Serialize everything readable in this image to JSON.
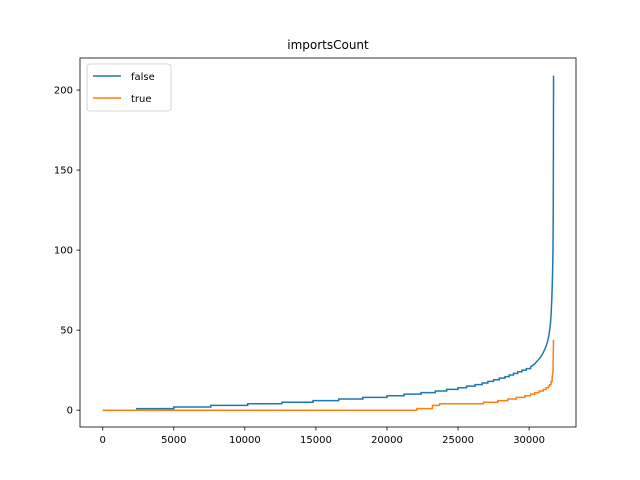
{
  "chart_data": {
    "type": "line",
    "title": "importsCount",
    "xlabel": "",
    "ylabel": "",
    "xlim": [
      -1600,
      33300
    ],
    "ylim": [
      -10.5,
      220
    ],
    "xticks": [
      0,
      5000,
      10000,
      15000,
      20000,
      25000,
      30000
    ],
    "yticks": [
      0,
      50,
      100,
      150,
      200
    ],
    "grid": false,
    "legend": "top-left",
    "series": [
      {
        "name": "false",
        "color": "#1f77b4",
        "x": [
          0,
          2400,
          2400,
          5000,
          5000,
          7600,
          7600,
          10200,
          10200,
          12600,
          12600,
          14800,
          14800,
          16600,
          16600,
          18300,
          18300,
          20000,
          20000,
          21200,
          21200,
          22400,
          22400,
          23400,
          23400,
          24200,
          24200,
          25000,
          25000,
          25600,
          25600,
          26200,
          26200,
          26700,
          26700,
          27100,
          27100,
          27500,
          27500,
          27900,
          27900,
          28300,
          28300,
          28600,
          28600,
          28900,
          28900,
          29200,
          29200,
          29500,
          29500,
          29800,
          29800,
          30100,
          30100,
          30400,
          30600,
          30800,
          31000,
          31200,
          31300,
          31400,
          31500,
          31550,
          31600,
          31650,
          31680,
          31700,
          31710,
          31720
        ],
        "y": [
          0,
          0,
          1,
          1,
          2,
          2,
          3,
          3,
          4,
          4,
          5,
          5,
          6,
          6,
          7,
          7,
          8,
          8,
          9,
          9,
          10,
          10,
          11,
          11,
          12,
          12,
          13,
          13,
          14,
          14,
          15,
          15,
          16,
          16,
          17,
          17,
          18,
          18,
          19,
          19,
          20,
          20,
          21,
          21,
          22,
          22,
          23,
          23,
          24,
          24,
          25,
          25,
          26,
          26,
          27,
          29,
          31,
          33,
          36,
          40,
          43,
          47,
          54,
          60,
          70,
          85,
          100,
          125,
          160,
          209
        ]
      },
      {
        "name": "true",
        "color": "#ff7f0e",
        "x": [
          0,
          22100,
          22100,
          23200,
          23200,
          23700,
          23700,
          26800,
          26800,
          27800,
          27800,
          28500,
          28500,
          29100,
          29100,
          29700,
          29700,
          30100,
          30100,
          30400,
          30400,
          30700,
          30700,
          31000,
          31000,
          31200,
          31200,
          31350,
          31350,
          31450,
          31450,
          31550,
          31550,
          31620,
          31620,
          31680,
          31700,
          31720
        ],
        "y": [
          0,
          0,
          1,
          1,
          3,
          3,
          4,
          4,
          5,
          5,
          6,
          6,
          7,
          7,
          8,
          8,
          9,
          9,
          10,
          10,
          11,
          11,
          12,
          12,
          13,
          13,
          14,
          14,
          15,
          15,
          16,
          16,
          18,
          18,
          20,
          24,
          35,
          44
        ]
      }
    ]
  }
}
